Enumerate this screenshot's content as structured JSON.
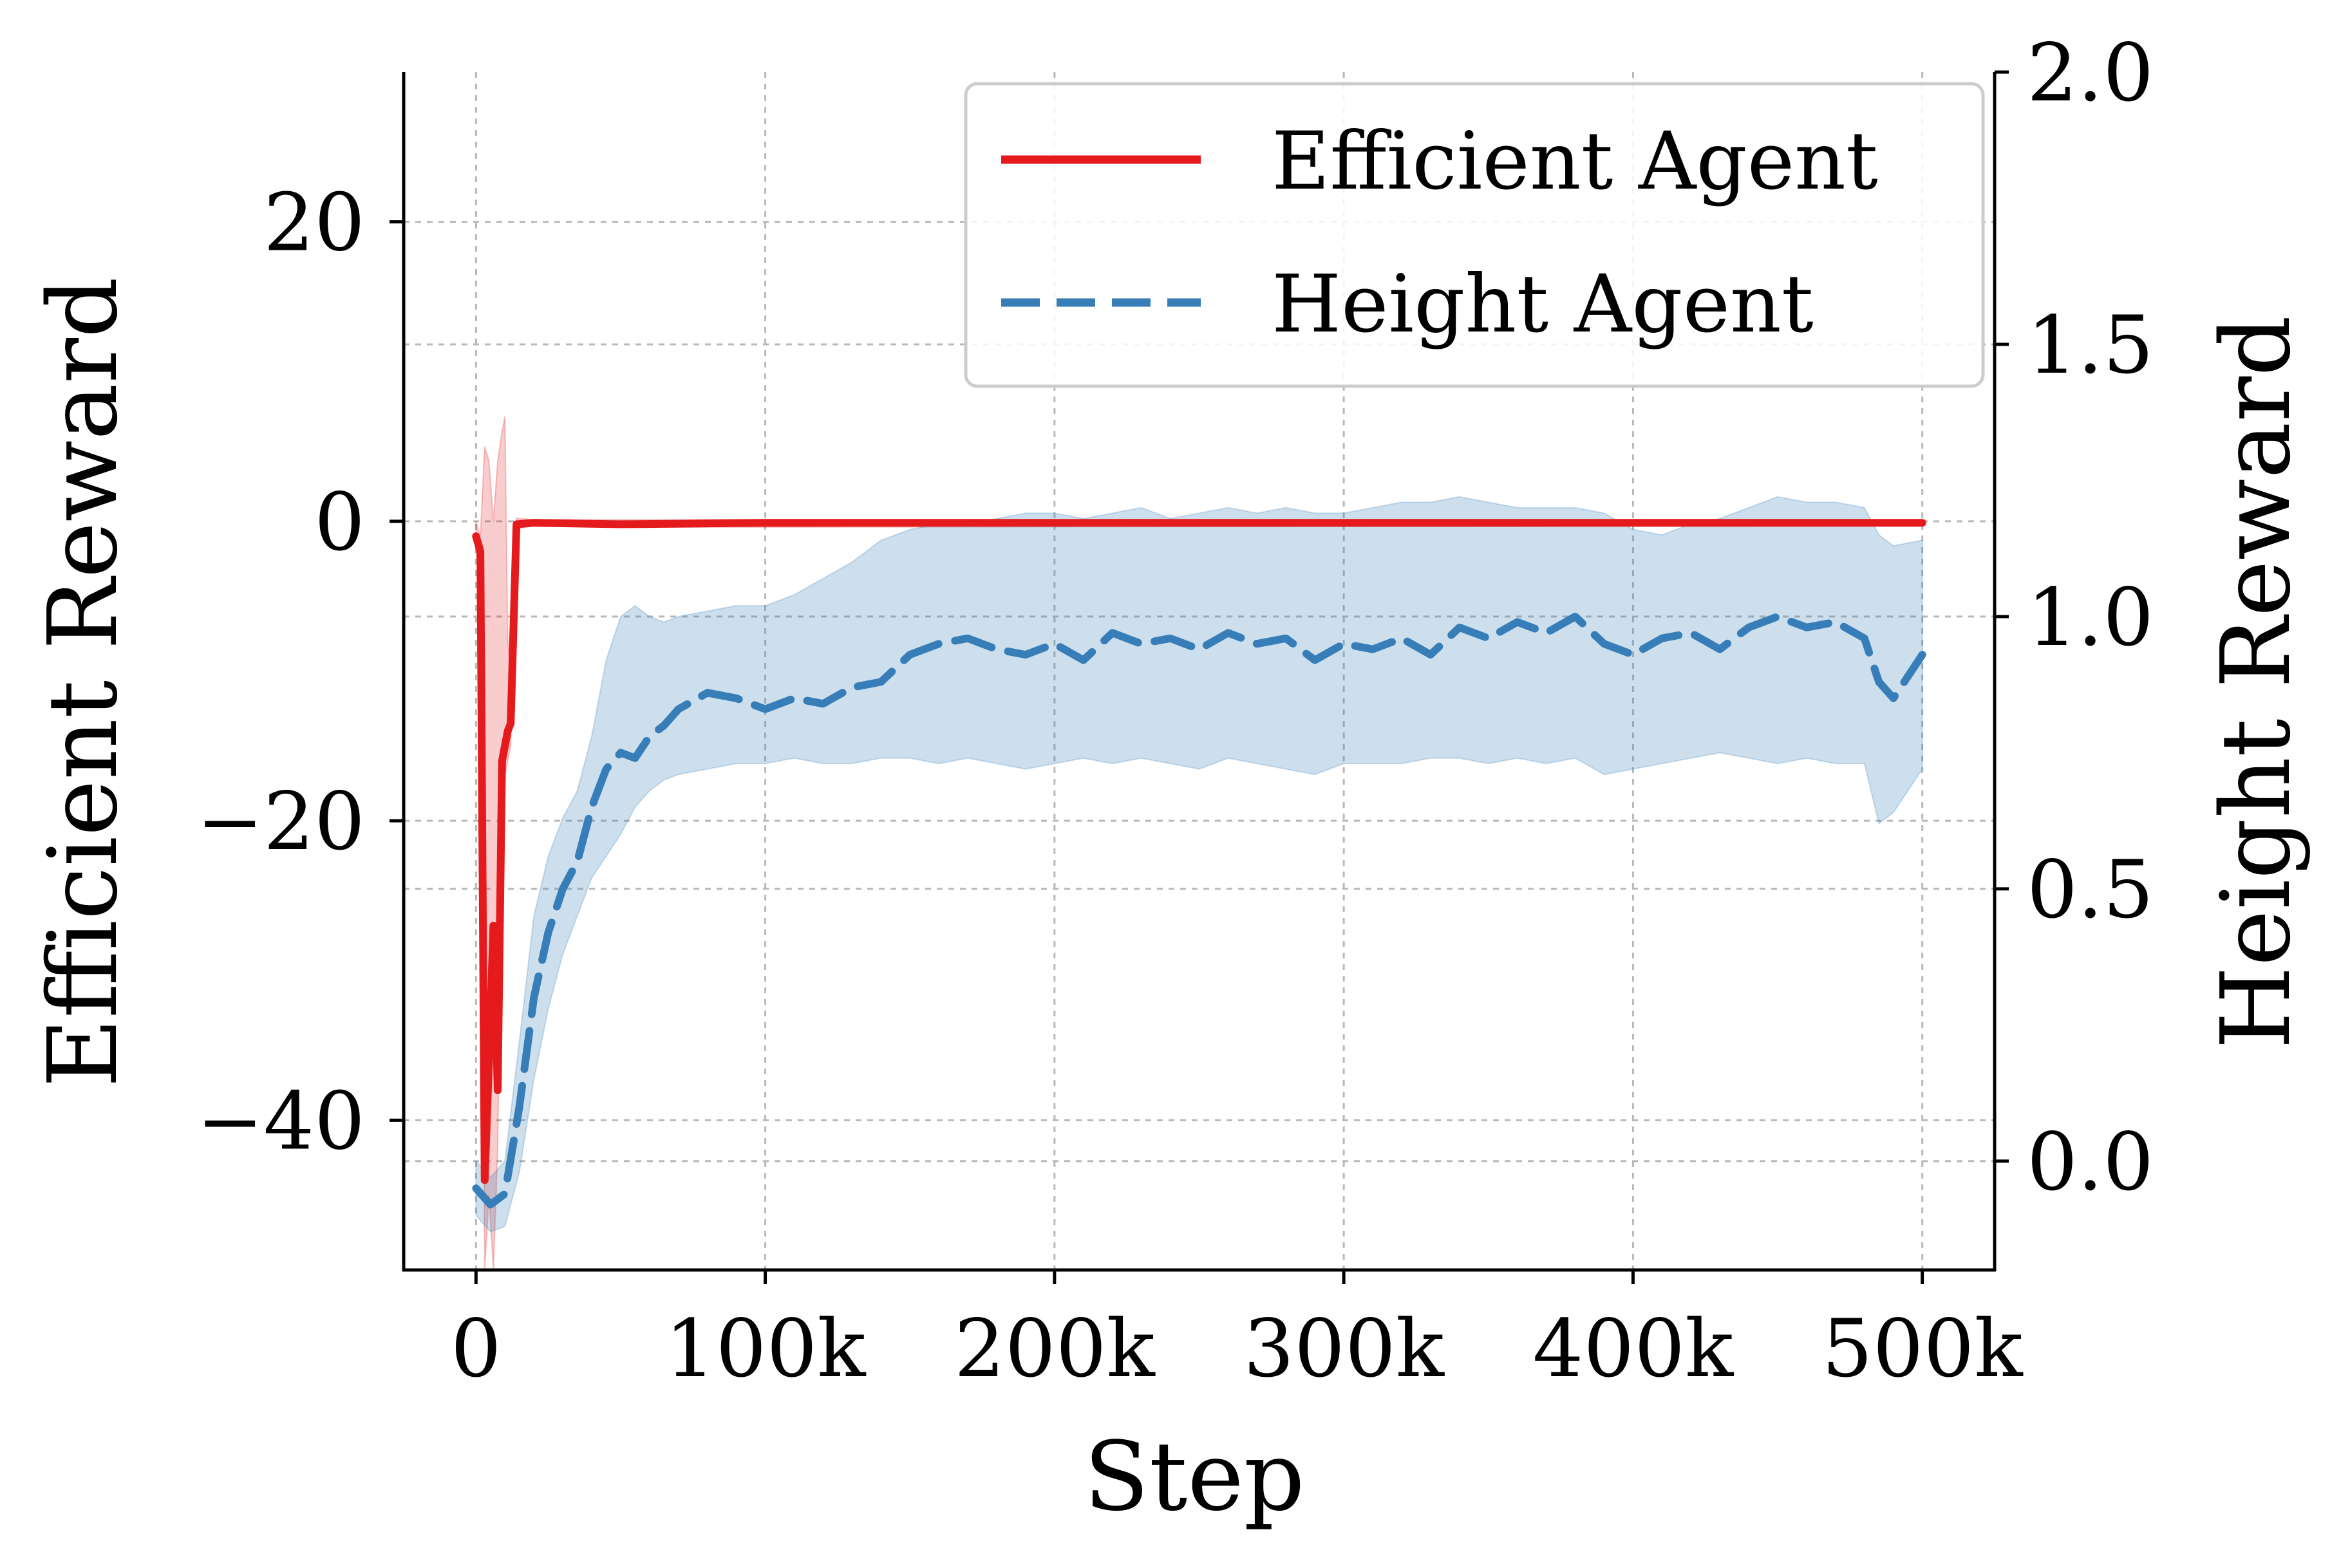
{
  "chart_data": {
    "type": "line",
    "xlabel": "Step",
    "ylabel_left": "Efficient Reward",
    "ylabel_right": "Height Reward",
    "xlim": [
      -25000,
      525000
    ],
    "ylim_left": [
      -50,
      30
    ],
    "ylim_right": [
      -0.2,
      2.0
    ],
    "x_ticks": [
      0,
      100000,
      200000,
      300000,
      400000,
      500000
    ],
    "x_tick_labels": [
      "0",
      "100k",
      "200k",
      "300k",
      "400k",
      "500k"
    ],
    "y_left_ticks": [
      -40,
      -20,
      0,
      20
    ],
    "y_left_tick_labels": [
      "−40",
      "−20",
      "0",
      "20"
    ],
    "y_right_ticks": [
      0.0,
      0.5,
      1.0,
      1.5,
      2.0
    ],
    "y_right_tick_labels": [
      "0.0",
      "0.5",
      "1.0",
      "1.5",
      "2.0"
    ],
    "grid": true,
    "legend_position": "top-right",
    "series": [
      {
        "name": "Efficient Agent",
        "axis": "left",
        "color": "#e41a1c",
        "dash": "solid",
        "x": [
          0,
          1500,
          3000,
          4500,
          6000,
          7500,
          9000,
          10000,
          11000,
          12000,
          14000,
          20000,
          50000,
          100000,
          150000,
          200000,
          300000,
          400000,
          500000
        ],
        "y": [
          -1,
          -2,
          -44,
          -36,
          -27,
          -38,
          -16,
          -15,
          -14,
          -13.5,
          -0.2,
          -0.1,
          -0.2,
          -0.1,
          -0.1,
          -0.1,
          -0.1,
          -0.1,
          -0.1
        ],
        "band_x": [
          0,
          1500,
          3000,
          4500,
          6000,
          7500,
          9000,
          10000,
          11000,
          12000,
          14000,
          20000,
          50000,
          500000
        ],
        "band_low": [
          -2,
          -4,
          -50,
          -45,
          -50,
          -42,
          -20,
          -17,
          -16,
          -15,
          -0.5,
          -0.3,
          -0.4,
          -0.3
        ],
        "band_high": [
          0,
          -1,
          5,
          4,
          0,
          4,
          6,
          7,
          -8,
          -10,
          0.2,
          0.1,
          0.1,
          0.1
        ]
      },
      {
        "name": "Height Agent",
        "axis": "right",
        "color": "#377eb8",
        "dash": "dashed",
        "x": [
          0,
          5000,
          10000,
          15000,
          20000,
          25000,
          30000,
          35000,
          40000,
          45000,
          50000,
          55000,
          60000,
          65000,
          70000,
          80000,
          90000,
          100000,
          110000,
          120000,
          130000,
          140000,
          150000,
          160000,
          170000,
          180000,
          190000,
          200000,
          210000,
          220000,
          230000,
          240000,
          250000,
          260000,
          270000,
          280000,
          290000,
          300000,
          310000,
          320000,
          330000,
          340000,
          350000,
          360000,
          370000,
          380000,
          390000,
          400000,
          410000,
          420000,
          430000,
          440000,
          450000,
          460000,
          470000,
          480000,
          485000,
          490000,
          500000
        ],
        "y": [
          -0.05,
          -0.08,
          -0.06,
          0.1,
          0.3,
          0.42,
          0.5,
          0.55,
          0.65,
          0.72,
          0.75,
          0.74,
          0.78,
          0.8,
          0.83,
          0.86,
          0.85,
          0.83,
          0.85,
          0.84,
          0.87,
          0.88,
          0.93,
          0.95,
          0.96,
          0.94,
          0.93,
          0.95,
          0.92,
          0.97,
          0.95,
          0.96,
          0.94,
          0.97,
          0.95,
          0.96,
          0.92,
          0.95,
          0.94,
          0.96,
          0.93,
          0.98,
          0.96,
          0.99,
          0.97,
          1.0,
          0.95,
          0.93,
          0.96,
          0.97,
          0.94,
          0.98,
          1.0,
          0.98,
          0.99,
          0.96,
          0.88,
          0.85,
          0.93
        ],
        "band_low": [
          -0.1,
          -0.13,
          -0.12,
          -0.02,
          0.15,
          0.28,
          0.38,
          0.45,
          0.52,
          0.56,
          0.6,
          0.65,
          0.68,
          0.7,
          0.71,
          0.72,
          0.73,
          0.73,
          0.74,
          0.73,
          0.73,
          0.74,
          0.74,
          0.73,
          0.74,
          0.73,
          0.72,
          0.73,
          0.74,
          0.73,
          0.74,
          0.73,
          0.72,
          0.74,
          0.73,
          0.72,
          0.71,
          0.73,
          0.73,
          0.73,
          0.74,
          0.74,
          0.73,
          0.74,
          0.73,
          0.74,
          0.71,
          0.72,
          0.73,
          0.74,
          0.75,
          0.74,
          0.73,
          0.74,
          0.73,
          0.73,
          0.62,
          0.64,
          0.72
        ],
        "band_high": [
          0.0,
          -0.03,
          0.0,
          0.22,
          0.45,
          0.56,
          0.63,
          0.68,
          0.78,
          0.92,
          1.0,
          1.02,
          1.0,
          0.99,
          1.0,
          1.01,
          1.02,
          1.02,
          1.04,
          1.07,
          1.1,
          1.14,
          1.16,
          1.17,
          1.17,
          1.18,
          1.19,
          1.19,
          1.18,
          1.19,
          1.2,
          1.18,
          1.19,
          1.2,
          1.19,
          1.2,
          1.19,
          1.19,
          1.2,
          1.21,
          1.21,
          1.22,
          1.21,
          1.2,
          1.2,
          1.2,
          1.19,
          1.16,
          1.15,
          1.17,
          1.18,
          1.2,
          1.22,
          1.21,
          1.21,
          1.2,
          1.15,
          1.13,
          1.14
        ]
      }
    ]
  }
}
